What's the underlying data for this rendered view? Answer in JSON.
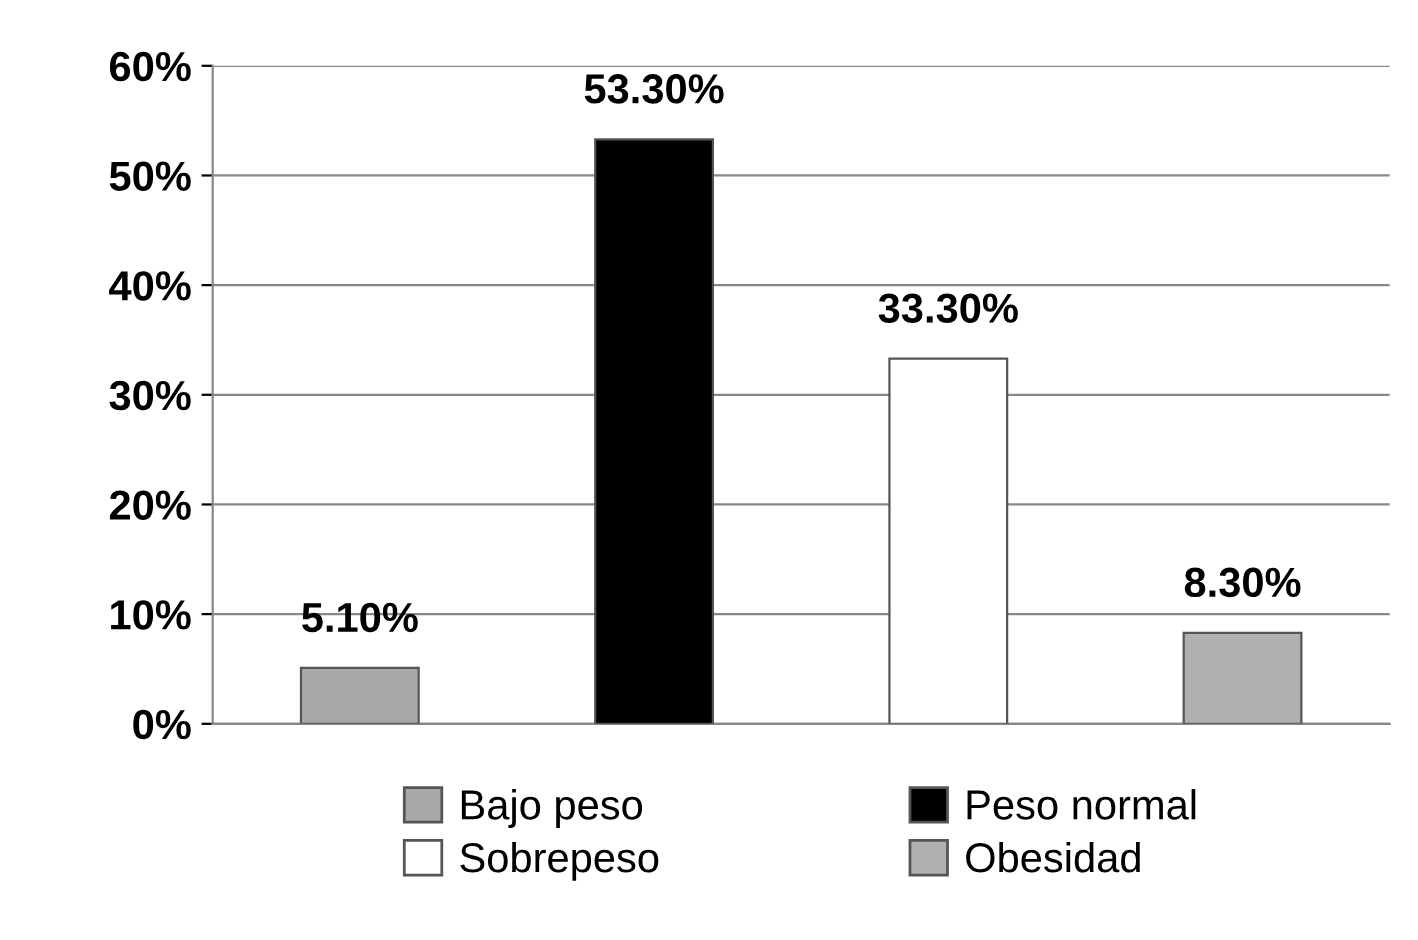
{
  "chart_data": {
    "type": "bar",
    "categories": [
      null,
      null,
      null,
      null
    ],
    "series": [
      {
        "name": "Bajo peso",
        "color": "#a9a9a9",
        "values": [
          5.1,
          null,
          null,
          null
        ],
        "value_labels": [
          "5.10%",
          null,
          null,
          null
        ]
      },
      {
        "name": "Peso normal",
        "color": "#000000",
        "values": [
          null,
          53.3,
          null,
          null
        ],
        "value_labels": [
          null,
          "53.30%",
          null,
          null
        ]
      },
      {
        "name": "Sobrepeso",
        "color": "#ffffff",
        "values": [
          null,
          null,
          33.3,
          null
        ],
        "value_labels": [
          null,
          null,
          "33.30%",
          null
        ]
      },
      {
        "name": "Obesidad",
        "color": "#b0b0b0",
        "values": [
          null,
          null,
          null,
          8.3
        ],
        "value_labels": [
          null,
          null,
          null,
          "8.30%"
        ]
      }
    ],
    "ylim": [
      0,
      60
    ],
    "yticks": [
      {
        "value": 0,
        "label": "0%"
      },
      {
        "value": 10,
        "label": "10%"
      },
      {
        "value": 20,
        "label": "20%"
      },
      {
        "value": 30,
        "label": "30%"
      },
      {
        "value": 40,
        "label": "40%"
      },
      {
        "value": 50,
        "label": "50%"
      },
      {
        "value": 60,
        "label": "60%"
      }
    ],
    "grid": "y",
    "legend": "bottom",
    "tick_labels": "y"
  }
}
